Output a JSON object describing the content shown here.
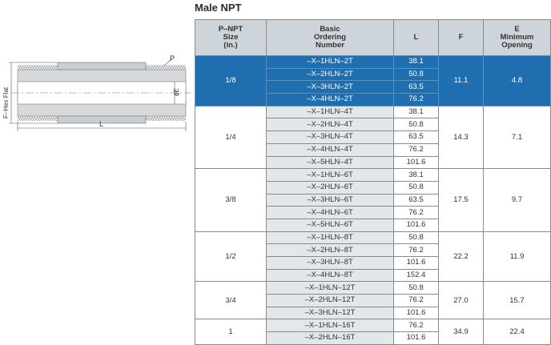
{
  "title": "Male NPT",
  "diagram": {
    "label_p": "P",
    "label_e": "ϕE",
    "label_f": "F–Hex Flat",
    "label_l": "L"
  },
  "table": {
    "headers": {
      "size": [
        "P–NPT",
        "Size",
        "(in.)"
      ],
      "ordering": [
        "Basic",
        "Ordering",
        "Number"
      ],
      "l": "L",
      "f": "F",
      "e": [
        "E",
        "Minimum",
        "Opening"
      ]
    },
    "groups": [
      {
        "size": "1/8",
        "f": "11.1",
        "e": "4.8",
        "highlight": true,
        "rows": [
          {
            "part": "–X–1HLN–2T",
            "l": "38.1"
          },
          {
            "part": "–X–2HLN–2T",
            "l": "50.8"
          },
          {
            "part": "–X–3HLN–2T",
            "l": "63.5"
          },
          {
            "part": "–X–4HLN–2T",
            "l": "76.2"
          }
        ]
      },
      {
        "size": "1/4",
        "f": "14.3",
        "e": "7.1",
        "highlight": false,
        "rows": [
          {
            "part": "–X–1HLN–4T",
            "l": "38.1"
          },
          {
            "part": "–X–2HLN–4T",
            "l": "50.8"
          },
          {
            "part": "–X–3HLN–4T",
            "l": "63.5"
          },
          {
            "part": "–X–4HLN–4T",
            "l": "76.2"
          },
          {
            "part": "–X–5HLN–4T",
            "l": "101.6"
          }
        ]
      },
      {
        "size": "3/8",
        "f": "17.5",
        "e": "9.7",
        "highlight": false,
        "rows": [
          {
            "part": "–X–1HLN–6T",
            "l": "38.1"
          },
          {
            "part": "–X–2HLN–6T",
            "l": "50.8"
          },
          {
            "part": "–X–3HLN–6T",
            "l": "63.5"
          },
          {
            "part": "–X–4HLN–6T",
            "l": "76.2"
          },
          {
            "part": "–X–5HLN–6T",
            "l": "101.6"
          }
        ]
      },
      {
        "size": "1/2",
        "f": "22.2",
        "e": "11.9",
        "highlight": false,
        "rows": [
          {
            "part": "–X–1HLN–8T",
            "l": "50.8"
          },
          {
            "part": "–X–2HLN–8T",
            "l": "76.2"
          },
          {
            "part": "–X–3HLN–8T",
            "l": "101.6"
          },
          {
            "part": "–X–4HLN–8T",
            "l": "152.4"
          }
        ]
      },
      {
        "size": "3/4",
        "f": "27.0",
        "e": "15.7",
        "highlight": false,
        "rows": [
          {
            "part": "–X–1HLN–12T",
            "l": "50.8"
          },
          {
            "part": "–X–2HLN–12T",
            "l": "76.2"
          },
          {
            "part": "–X–3HLN–12T",
            "l": "101.6"
          }
        ]
      },
      {
        "size": "1",
        "f": "34.9",
        "e": "22.4",
        "highlight": false,
        "rows": [
          {
            "part": "–X–1HLN–16T",
            "l": "76.2"
          },
          {
            "part": "–X–2HLN–16T",
            "l": "101.6"
          }
        ]
      }
    ]
  }
}
